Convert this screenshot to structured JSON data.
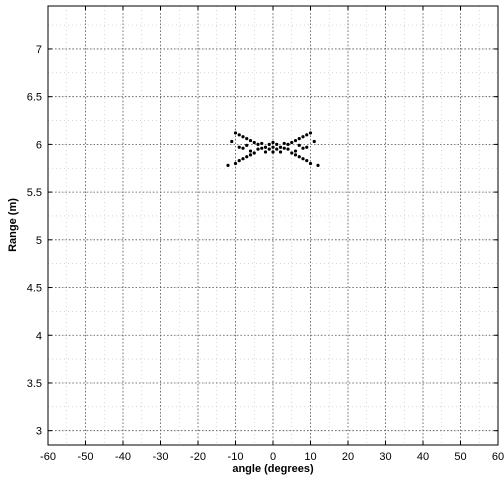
{
  "chart_data": {
    "type": "scatter",
    "xlabel": "angle (degrees)",
    "ylabel": "Range (m)",
    "xlim": [
      -60,
      60
    ],
    "ylim": [
      2.85,
      7.45
    ],
    "x_ticks": [
      -60,
      -50,
      -40,
      -30,
      -20,
      -10,
      0,
      10,
      20,
      30,
      40,
      50,
      60
    ],
    "y_ticks": [
      3,
      3.5,
      4,
      4.5,
      5,
      5.5,
      6,
      6.5,
      7
    ],
    "x_tick_labels": [
      "-60",
      "-50",
      "-40",
      "-30",
      "-20",
      "-10",
      "0",
      "10",
      "20",
      "30",
      "40",
      "50",
      "60"
    ],
    "y_tick_labels": [
      "3",
      "3.5",
      "4",
      "4.5",
      "5",
      "5.5",
      "6",
      "6.5",
      "7"
    ],
    "grid": true,
    "grid_style": "dotted",
    "x_minor_step": 5,
    "y_minor_step": 0.25,
    "series": [
      {
        "color": "#000000",
        "points": [
          [
            0,
            5.97
          ],
          [
            -1,
            5.95
          ],
          [
            1,
            5.95
          ],
          [
            -2,
            5.97
          ],
          [
            2,
            5.97
          ],
          [
            -3,
            5.96
          ],
          [
            3,
            5.96
          ],
          [
            0,
            5.92
          ],
          [
            0,
            6.02
          ],
          [
            -1,
            6.0
          ],
          [
            1,
            6.0
          ],
          [
            -2,
            5.92
          ],
          [
            2,
            5.92
          ],
          [
            -3,
            6.01
          ],
          [
            3,
            6.01
          ],
          [
            -4,
            5.95
          ],
          [
            4,
            5.95
          ],
          [
            -4,
            6.0
          ],
          [
            4,
            6.0
          ],
          [
            -5,
            6.02
          ],
          [
            5,
            6.02
          ],
          [
            -5,
            5.91
          ],
          [
            5,
            5.91
          ],
          [
            -6,
            6.04
          ],
          [
            6,
            6.04
          ],
          [
            -6,
            5.89
          ],
          [
            6,
            5.89
          ],
          [
            -7,
            6.06
          ],
          [
            7,
            6.06
          ],
          [
            -7,
            5.87
          ],
          [
            7,
            5.87
          ],
          [
            -8,
            6.08
          ],
          [
            8,
            6.08
          ],
          [
            -8,
            5.85
          ],
          [
            8,
            5.85
          ],
          [
            -9,
            6.1
          ],
          [
            9,
            6.1
          ],
          [
            -9,
            5.83
          ],
          [
            9,
            5.83
          ],
          [
            -10,
            6.12
          ],
          [
            10,
            6.12
          ],
          [
            -10,
            5.8
          ],
          [
            10,
            5.8
          ],
          [
            -7,
            5.99
          ],
          [
            7,
            5.99
          ],
          [
            -8,
            5.96
          ],
          [
            8,
            5.96
          ],
          [
            -6,
            5.93
          ],
          [
            6,
            5.93
          ],
          [
            -11,
            6.03
          ],
          [
            11,
            6.03
          ],
          [
            -9,
            5.97
          ],
          [
            9,
            5.97
          ],
          [
            -12,
            5.78
          ],
          [
            12,
            5.78
          ]
        ]
      }
    ]
  }
}
